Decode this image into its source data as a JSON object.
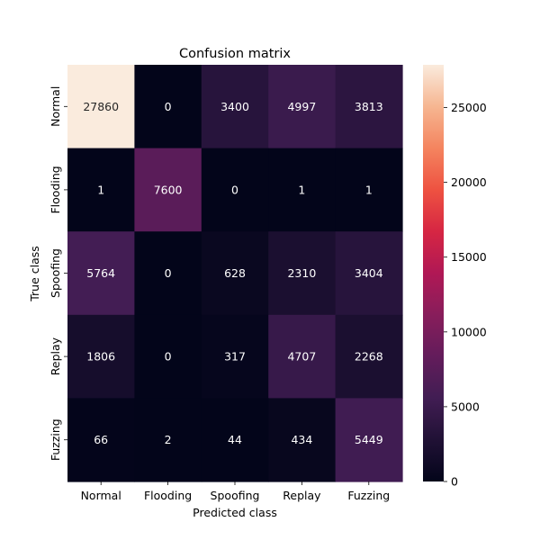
{
  "chart_data": {
    "type": "heatmap",
    "title": "Confusion matrix",
    "xlabel": "Predicted class",
    "ylabel": "True class",
    "x_categories": [
      "Normal",
      "Flooding",
      "Spoofing",
      "Replay",
      "Fuzzing"
    ],
    "y_categories": [
      "Normal",
      "Flooding",
      "Spoofing",
      "Replay",
      "Fuzzing"
    ],
    "values": [
      [
        27860,
        0,
        3400,
        4997,
        3813
      ],
      [
        1,
        7600,
        0,
        1,
        1
      ],
      [
        5764,
        0,
        628,
        2310,
        3404
      ],
      [
        1806,
        0,
        317,
        4707,
        2268
      ],
      [
        66,
        2,
        44,
        434,
        5449
      ]
    ],
    "colorbar": {
      "min": 0,
      "max": 27860,
      "ticks": [
        0,
        5000,
        10000,
        15000,
        20000,
        25000
      ],
      "colormap": "rocket"
    },
    "grid": false
  }
}
